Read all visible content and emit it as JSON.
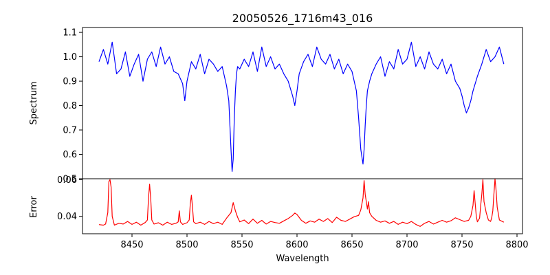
{
  "chart_data": [
    {
      "type": "line",
      "title": "20050526_1716m43_016",
      "xlabel": "",
      "ylabel": "Spectrum",
      "xlim": [
        8405,
        8805
      ],
      "ylim": [
        0.5,
        1.12
      ],
      "yticks": [
        0.5,
        0.6,
        0.7,
        0.8,
        0.9,
        1.0,
        1.1
      ],
      "xticks_visible": false,
      "grid": false,
      "series": [
        {
          "color": "#0000ff",
          "x": [
            8420,
            8424,
            8428,
            8432,
            8436,
            8440,
            8444,
            8448,
            8452,
            8456,
            8460,
            8464,
            8468,
            8472,
            8476,
            8480,
            8484,
            8488,
            8492,
            8496,
            8498,
            8500,
            8504,
            8508,
            8512,
            8516,
            8520,
            8524,
            8528,
            8532,
            8536,
            8538,
            8540,
            8541,
            8542,
            8543,
            8544,
            8545,
            8546,
            8548,
            8552,
            8556,
            8560,
            8564,
            8568,
            8572,
            8576,
            8580,
            8584,
            8588,
            8592,
            8596,
            8598,
            8600,
            8602,
            8606,
            8610,
            8614,
            8618,
            8622,
            8626,
            8630,
            8634,
            8638,
            8642,
            8646,
            8650,
            8654,
            8656,
            8658,
            8660,
            8661,
            8662,
            8663,
            8664,
            8666,
            8668,
            8672,
            8676,
            8680,
            8684,
            8688,
            8692,
            8696,
            8700,
            8704,
            8708,
            8712,
            8716,
            8720,
            8724,
            8728,
            8732,
            8736,
            8740,
            8744,
            8748,
            8750,
            8752,
            8754,
            8756,
            8758,
            8760,
            8764,
            8768,
            8772,
            8776,
            8780,
            8784,
            8788
          ],
          "y": [
            0.98,
            1.03,
            0.97,
            1.06,
            0.93,
            0.95,
            1.02,
            0.92,
            0.97,
            1.01,
            0.9,
            0.99,
            1.02,
            0.96,
            1.04,
            0.97,
            1.0,
            0.94,
            0.93,
            0.89,
            0.82,
            0.9,
            0.98,
            0.95,
            1.01,
            0.93,
            0.99,
            0.97,
            0.94,
            0.96,
            0.88,
            0.82,
            0.62,
            0.53,
            0.58,
            0.75,
            0.86,
            0.93,
            0.96,
            0.95,
            0.99,
            0.96,
            1.02,
            0.94,
            1.04,
            0.96,
            1.0,
            0.95,
            0.97,
            0.93,
            0.9,
            0.84,
            0.8,
            0.86,
            0.93,
            0.98,
            1.01,
            0.96,
            1.04,
            0.99,
            0.97,
            1.01,
            0.95,
            0.99,
            0.93,
            0.97,
            0.94,
            0.86,
            0.75,
            0.62,
            0.56,
            0.62,
            0.72,
            0.8,
            0.86,
            0.9,
            0.93,
            0.97,
            1.0,
            0.92,
            0.98,
            0.95,
            1.03,
            0.97,
            0.99,
            1.06,
            0.96,
            1.0,
            0.95,
            1.02,
            0.97,
            0.95,
            0.99,
            0.93,
            0.97,
            0.9,
            0.87,
            0.84,
            0.8,
            0.77,
            0.79,
            0.82,
            0.86,
            0.92,
            0.97,
            1.03,
            0.98,
            1.0,
            1.04,
            0.97
          ]
        }
      ]
    },
    {
      "type": "line",
      "title": "",
      "xlabel": "Wavelength",
      "ylabel": "Error",
      "xlim": [
        8405,
        8805
      ],
      "ylim": [
        0.0305,
        0.0605
      ],
      "xticks": [
        8450,
        8500,
        8550,
        8600,
        8650,
        8700,
        8750,
        8800
      ],
      "yticks": [
        0.04,
        0.06
      ],
      "grid": false,
      "series": [
        {
          "color": "#ff0000",
          "x": [
            8420,
            8424,
            8426,
            8428,
            8429,
            8430,
            8431,
            8432,
            8434,
            8438,
            8442,
            8446,
            8450,
            8454,
            8458,
            8462,
            8464,
            8465,
            8466,
            8467,
            8468,
            8470,
            8474,
            8478,
            8482,
            8486,
            8490,
            8492,
            8493,
            8494,
            8496,
            8500,
            8502,
            8503,
            8504,
            8505,
            8506,
            8508,
            8512,
            8516,
            8520,
            8524,
            8528,
            8532,
            8536,
            8540,
            8542,
            8544,
            8546,
            8548,
            8552,
            8556,
            8560,
            8564,
            8568,
            8572,
            8576,
            8580,
            8584,
            8588,
            8592,
            8596,
            8598,
            8600,
            8604,
            8608,
            8612,
            8616,
            8620,
            8624,
            8628,
            8632,
            8636,
            8640,
            8644,
            8648,
            8652,
            8656,
            8658,
            8660,
            8661,
            8662,
            8664,
            8665,
            8666,
            8668,
            8672,
            8676,
            8680,
            8684,
            8688,
            8692,
            8696,
            8700,
            8704,
            8708,
            8712,
            8716,
            8720,
            8724,
            8728,
            8732,
            8736,
            8740,
            8744,
            8748,
            8752,
            8756,
            8758,
            8760,
            8761,
            8762,
            8763,
            8764,
            8766,
            8767,
            8768,
            8769,
            8770,
            8772,
            8774,
            8776,
            8777,
            8778,
            8779,
            8780,
            8781,
            8782,
            8784,
            8788
          ],
          "y": [
            0.0355,
            0.0352,
            0.0358,
            0.042,
            0.059,
            0.06,
            0.056,
            0.04,
            0.0352,
            0.0362,
            0.0358,
            0.0372,
            0.0356,
            0.0368,
            0.0352,
            0.0366,
            0.038,
            0.05,
            0.0575,
            0.05,
            0.038,
            0.0358,
            0.0365,
            0.0352,
            0.0368,
            0.0356,
            0.0362,
            0.037,
            0.043,
            0.037,
            0.0356,
            0.0365,
            0.038,
            0.047,
            0.0515,
            0.045,
            0.037,
            0.036,
            0.0368,
            0.0356,
            0.0372,
            0.036,
            0.0368,
            0.0356,
            0.039,
            0.042,
            0.0475,
            0.043,
            0.0395,
            0.037,
            0.038,
            0.036,
            0.0385,
            0.0362,
            0.0378,
            0.0358,
            0.0372,
            0.0366,
            0.0362,
            0.0375,
            0.0388,
            0.0405,
            0.0418,
            0.041,
            0.0378,
            0.0362,
            0.0375,
            0.0368,
            0.0385,
            0.0372,
            0.0388,
            0.0366,
            0.0395,
            0.0378,
            0.0372,
            0.0385,
            0.0398,
            0.0405,
            0.0435,
            0.05,
            0.0595,
            0.052,
            0.044,
            0.048,
            0.042,
            0.04,
            0.0378,
            0.0368,
            0.0375,
            0.0362,
            0.0372,
            0.0356,
            0.0368,
            0.036,
            0.0372,
            0.0356,
            0.0345,
            0.0362,
            0.0372,
            0.0358,
            0.0368,
            0.0378,
            0.0368,
            0.0376,
            0.0392,
            0.0382,
            0.0372,
            0.0378,
            0.04,
            0.046,
            0.054,
            0.047,
            0.04,
            0.037,
            0.039,
            0.046,
            0.052,
            0.06,
            0.048,
            0.042,
            0.038,
            0.0372,
            0.0392,
            0.043,
            0.052,
            0.0605,
            0.054,
            0.045,
            0.038,
            0.0368
          ]
        }
      ]
    }
  ]
}
